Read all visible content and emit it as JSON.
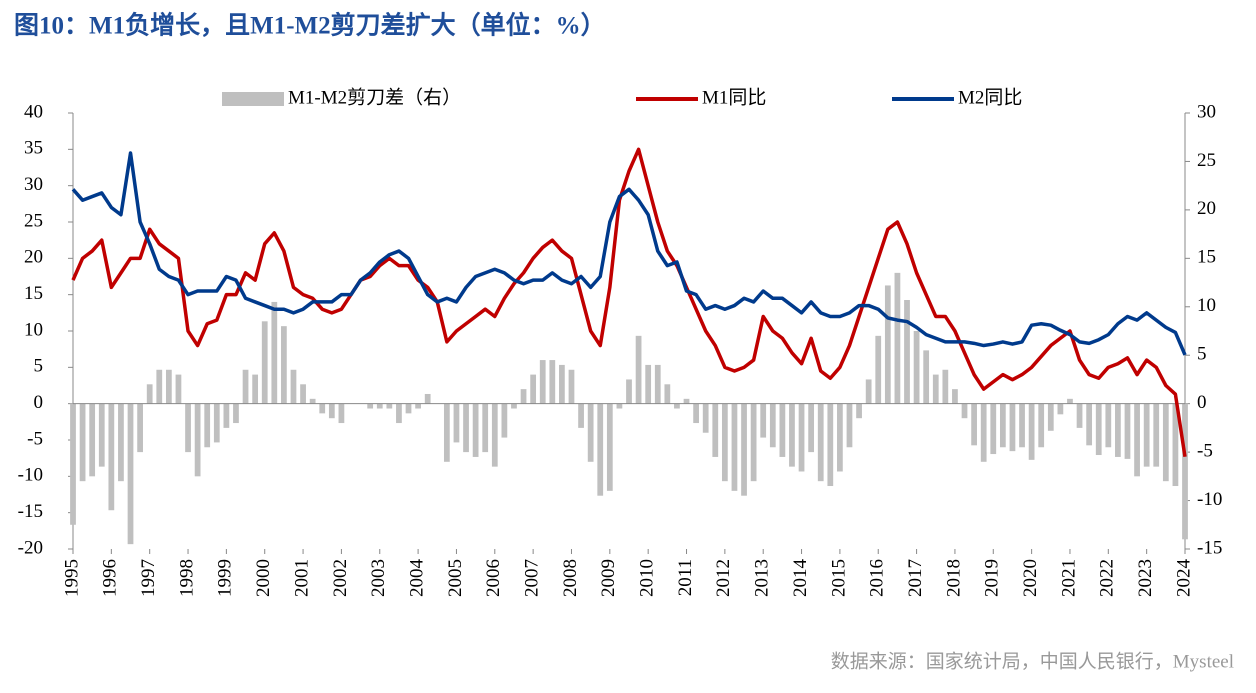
{
  "chart_data": {
    "type": "combo",
    "title": "图10：M1负增长，且M1-M2剪刀差扩大（单位：%）",
    "source": "数据来源：国家统计局，中国人民银行，Mysteel",
    "x": [
      1995,
      1995.25,
      1995.5,
      1995.75,
      1996,
      1996.25,
      1996.5,
      1996.75,
      1997,
      1997.25,
      1997.5,
      1997.75,
      1998,
      1998.25,
      1998.5,
      1998.75,
      1999,
      1999.25,
      1999.5,
      1999.75,
      2000,
      2000.25,
      2000.5,
      2000.75,
      2001,
      2001.25,
      2001.5,
      2001.75,
      2002,
      2002.25,
      2002.5,
      2002.75,
      2003,
      2003.25,
      2003.5,
      2003.75,
      2004,
      2004.25,
      2004.5,
      2004.75,
      2005,
      2005.25,
      2005.5,
      2005.75,
      2006,
      2006.25,
      2006.5,
      2006.75,
      2007,
      2007.25,
      2007.5,
      2007.75,
      2008,
      2008.25,
      2008.5,
      2008.75,
      2009,
      2009.25,
      2009.5,
      2009.75,
      2010,
      2010.25,
      2010.5,
      2010.75,
      2011,
      2011.25,
      2011.5,
      2011.75,
      2012,
      2012.25,
      2012.5,
      2012.75,
      2013,
      2013.25,
      2013.5,
      2013.75,
      2014,
      2014.25,
      2014.5,
      2014.75,
      2015,
      2015.25,
      2015.5,
      2015.75,
      2016,
      2016.25,
      2016.5,
      2016.75,
      2017,
      2017.25,
      2017.5,
      2017.75,
      2018,
      2018.25,
      2018.5,
      2018.75,
      2019,
      2019.25,
      2019.5,
      2019.75,
      2020,
      2020.25,
      2020.5,
      2020.75,
      2021,
      2021.25,
      2021.5,
      2021.75,
      2022,
      2022.25,
      2022.5,
      2022.75,
      2023,
      2023.25,
      2023.5,
      2023.75,
      2024
    ],
    "series": [
      {
        "name": "M1-M2剪刀差（右）",
        "type": "bar",
        "axis": "y2",
        "color": "#bfbfbf",
        "values": [
          -12.5,
          -8,
          -7.5,
          -6.5,
          -11,
          -8,
          -14.5,
          -5,
          2,
          3.5,
          3.5,
          3,
          -5,
          -7.5,
          -4.5,
          -4,
          -2.5,
          -2,
          3.5,
          3,
          8.5,
          10.5,
          8,
          3.5,
          2,
          0.5,
          -1,
          -1.5,
          -2,
          0,
          0,
          -0.5,
          -0.5,
          -0.5,
          -2,
          -1,
          -0.5,
          1,
          0,
          -6,
          -4,
          -5,
          -5.5,
          -5,
          -6.5,
          -3.5,
          -0.5,
          1.5,
          3,
          4.5,
          4.5,
          4,
          3.5,
          -2.5,
          -6,
          -9.5,
          -9,
          -0.5,
          2.5,
          7,
          4,
          4,
          2,
          -0.5,
          0.5,
          -2,
          -3,
          -5.5,
          -8,
          -9,
          -9.5,
          -8,
          -3.5,
          -4.5,
          -5.5,
          -6.5,
          -7,
          -5,
          -8,
          -8.5,
          -7,
          -4.5,
          -1.5,
          2.5,
          7,
          12.2,
          13.5,
          10.7,
          7.5,
          5.5,
          3,
          3.5,
          1.5,
          -1.5,
          -4.3,
          -6,
          -5.2,
          -4.5,
          -4.9,
          -4.5,
          -5.8,
          -4.5,
          -2.8,
          -1.1,
          0.5,
          -2.5,
          -4.3,
          -5.3,
          -4.5,
          -5.5,
          -5.7,
          -7.5,
          -6.5,
          -6.5,
          -8,
          -8.5,
          -14
        ]
      },
      {
        "name": "M1同比",
        "type": "line",
        "color": "#c00000",
        "values": [
          17,
          20,
          21,
          22.5,
          16,
          18,
          20,
          20,
          24,
          22,
          21,
          20,
          10,
          8,
          11,
          11.5,
          15,
          15,
          18,
          17,
          22,
          23.5,
          21,
          16,
          15,
          14.5,
          13,
          12.5,
          13,
          15,
          17,
          17.5,
          19,
          20,
          19,
          19,
          17,
          16,
          14,
          8.5,
          10,
          11,
          12,
          13,
          12,
          14.5,
          16.5,
          18,
          20,
          21.5,
          22.5,
          21,
          20,
          15,
          10,
          8,
          16,
          28,
          32,
          35,
          30,
          25,
          21,
          19,
          16,
          13,
          10,
          8,
          5,
          4.5,
          5,
          6,
          12,
          10,
          9,
          7,
          5.5,
          9,
          4.5,
          3.5,
          5,
          8,
          12,
          16,
          20,
          24,
          25,
          22,
          18,
          15,
          12,
          12,
          10,
          7,
          4,
          2,
          3,
          4,
          3.3,
          4,
          5,
          6.5,
          8,
          9,
          10,
          6,
          4,
          3.5,
          5,
          5.5,
          6.3,
          4,
          6,
          5,
          2.5,
          1.3,
          -7.3
        ]
      },
      {
        "name": "M2同比",
        "type": "line",
        "color": "#003a8c",
        "values": [
          29.5,
          28,
          28.5,
          29,
          27,
          26,
          34.5,
          25,
          22,
          18.5,
          17.5,
          17,
          15,
          15.5,
          15.5,
          15.5,
          17.5,
          17,
          14.5,
          14,
          13.5,
          13,
          13,
          12.5,
          13,
          14,
          14,
          14,
          15,
          15,
          17,
          18,
          19.5,
          20.5,
          21,
          20,
          17.5,
          15,
          14,
          14.5,
          14,
          16,
          17.5,
          18,
          18.5,
          18,
          17,
          16.5,
          17,
          17,
          18,
          17,
          16.5,
          17.5,
          16,
          17.5,
          25,
          28.5,
          29.5,
          28,
          26,
          21,
          19,
          19.5,
          15.5,
          15,
          13,
          13.5,
          13,
          13.5,
          14.5,
          14,
          15.5,
          14.5,
          14.5,
          13.5,
          12.5,
          14,
          12.5,
          12,
          12,
          12.5,
          13.5,
          13.5,
          13,
          11.8,
          11.5,
          11.3,
          10.5,
          9.5,
          9,
          8.5,
          8.5,
          8.5,
          8.3,
          8,
          8.2,
          8.5,
          8.2,
          8.5,
          10.8,
          11,
          10.8,
          10.1,
          9.5,
          8.5,
          8.3,
          8.8,
          9.5,
          11,
          12,
          11.5,
          12.5,
          11.5,
          10.5,
          9.8,
          6.7
        ]
      }
    ],
    "xlim": [
      1995,
      2024
    ],
    "xticks": [
      1995,
      1996,
      1997,
      1998,
      1999,
      2000,
      2001,
      2002,
      2003,
      2004,
      2005,
      2006,
      2007,
      2008,
      2009,
      2010,
      2011,
      2012,
      2013,
      2014,
      2015,
      2016,
      2017,
      2018,
      2019,
      2020,
      2021,
      2022,
      2023,
      2024
    ],
    "ylim": [
      -20,
      40
    ],
    "yticks": [
      -20,
      -15,
      -10,
      -5,
      0,
      5,
      10,
      15,
      20,
      25,
      30,
      35,
      40
    ],
    "y2lim": [
      -15,
      30
    ],
    "y2ticks": [
      -15,
      -10,
      -5,
      0,
      5,
      10,
      15,
      20,
      25,
      30
    ],
    "legend": "top"
  }
}
